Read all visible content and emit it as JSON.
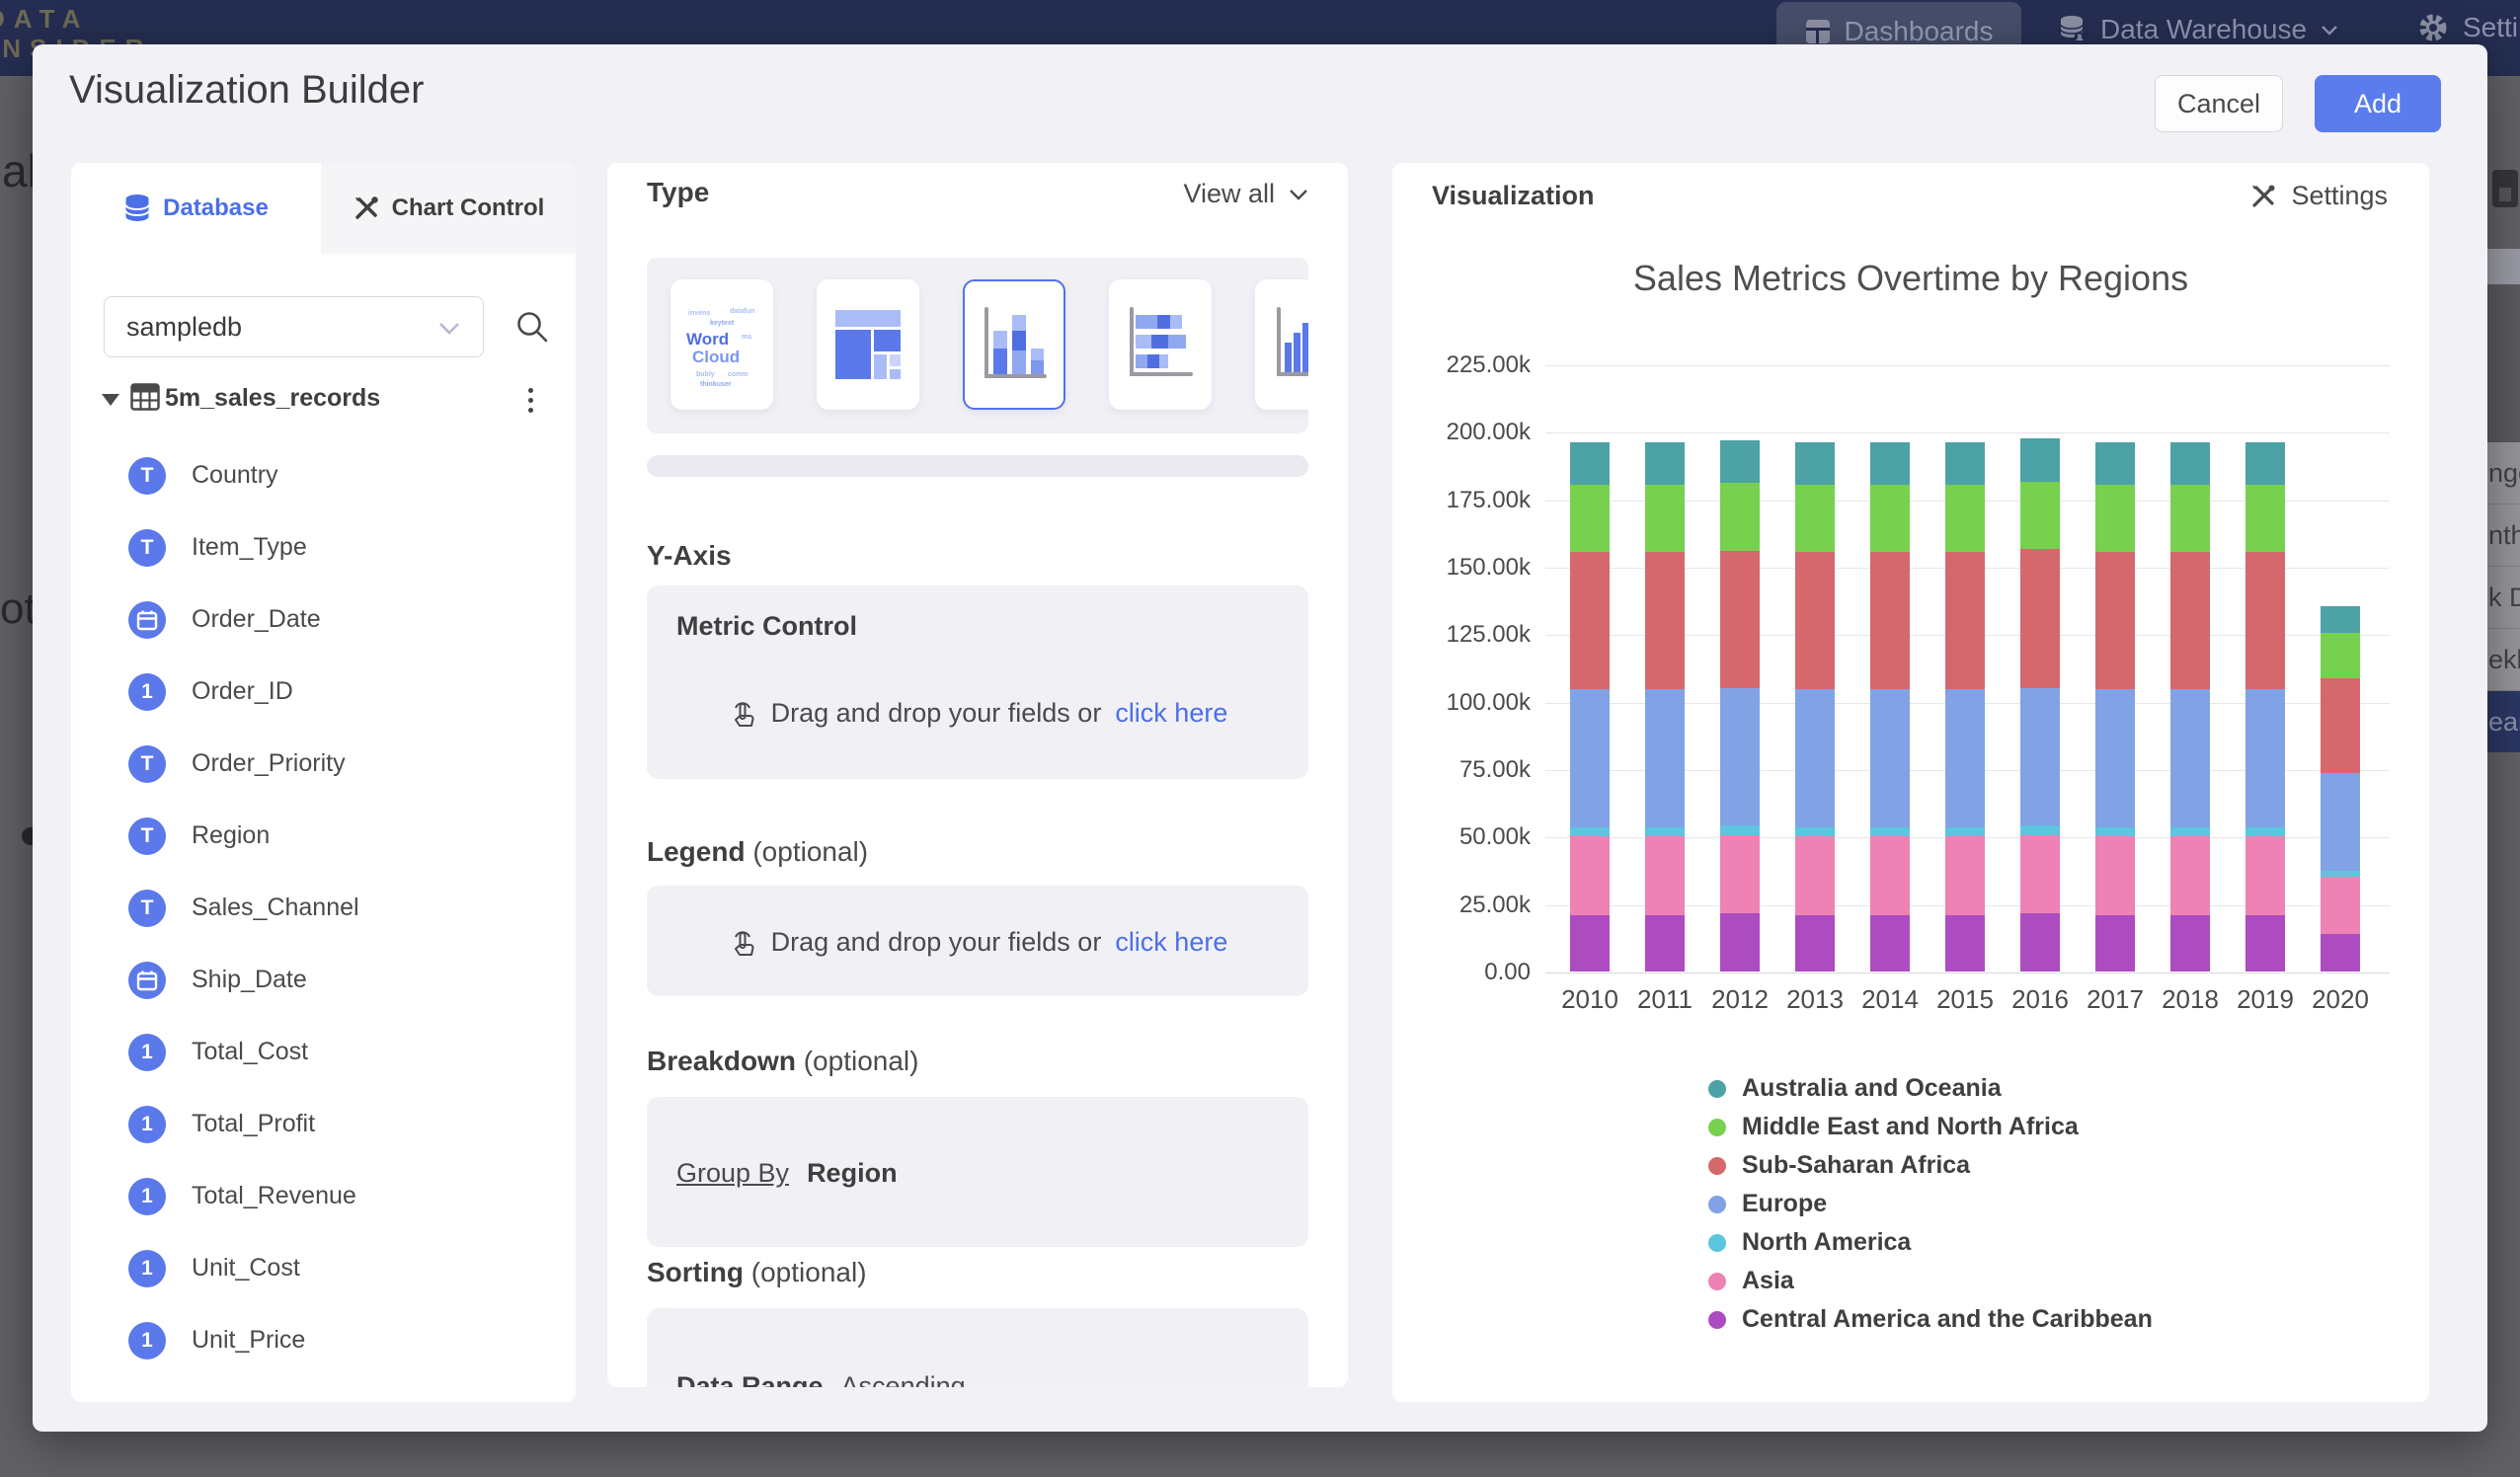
{
  "nav": {
    "logo_top": "DATA",
    "logo_bottom": "INSIDER",
    "dashboards": "Dashboards",
    "data_warehouse": "Data Warehouse",
    "settings": "Settings"
  },
  "background": {
    "fragment_top": "al",
    "fragment_middle": "ota",
    "right_menu": {
      "items": [
        "nge",
        "nthly",
        "k Date",
        "ekly",
        "ear"
      ],
      "active_index": 4
    }
  },
  "modal": {
    "title": "Visualization Builder",
    "cancel_label": "Cancel",
    "add_label": "Add"
  },
  "database_panel": {
    "tabs": [
      {
        "label": "Database"
      },
      {
        "label": "Chart Control"
      }
    ],
    "search_value": "sampledb",
    "table_name": "5m_sales_records",
    "fields": [
      {
        "name": "Country",
        "type": "text"
      },
      {
        "name": "Item_Type",
        "type": "text"
      },
      {
        "name": "Order_Date",
        "type": "date"
      },
      {
        "name": "Order_ID",
        "type": "number"
      },
      {
        "name": "Order_Priority",
        "type": "text"
      },
      {
        "name": "Region",
        "type": "text"
      },
      {
        "name": "Sales_Channel",
        "type": "text"
      },
      {
        "name": "Ship_Date",
        "type": "date"
      },
      {
        "name": "Total_Cost",
        "type": "number"
      },
      {
        "name": "Total_Profit",
        "type": "number"
      },
      {
        "name": "Total_Revenue",
        "type": "number"
      },
      {
        "name": "Unit_Cost",
        "type": "number"
      },
      {
        "name": "Unit_Price",
        "type": "number"
      }
    ]
  },
  "builder_panel": {
    "type_label": "Type",
    "view_all_label": "View all",
    "y_axis_label": "Y-Axis",
    "metric_control_label": "Metric Control",
    "drag_drop_text": "Drag and drop your fields or",
    "click_here_label": "click here",
    "legend_label": "Legend",
    "breakdown_label": "Breakdown",
    "sorting_label": "Sorting",
    "optional_suffix": "(optional)",
    "group_by_label": "Group By",
    "group_by_value": "Region",
    "sorting_field": "Data Range",
    "sorting_value": "Ascending"
  },
  "viz_panel": {
    "header": "Visualization",
    "settings_label": "Settings"
  },
  "chart_data": {
    "type": "bar",
    "stacked": true,
    "title": "Sales Metrics Overtime by Regions",
    "xlabel": "",
    "ylabel": "",
    "unit": "k",
    "ylim": [
      0,
      225
    ],
    "grid": true,
    "legend_position": "bottom",
    "categories": [
      "2010",
      "2011",
      "2012",
      "2013",
      "2014",
      "2015",
      "2016",
      "2017",
      "2018",
      "2019",
      "2020"
    ],
    "y_ticks": [
      "225.00k",
      "200.00k",
      "175.00k",
      "150.00k",
      "125.00k",
      "100.00k",
      "75.00k",
      "50.00k",
      "25.00k",
      "0.00"
    ],
    "series": [
      {
        "name": "Central America and the Caribbean",
        "color": "#ad4bc1",
        "values": [
          21,
          21,
          21.5,
          21,
          21,
          21,
          21.5,
          21,
          21,
          21,
          14
        ]
      },
      {
        "name": "Asia",
        "color": "#ee82b4",
        "values": [
          29,
          29,
          29,
          29,
          29,
          29,
          29,
          29,
          29,
          29,
          21
        ]
      },
      {
        "name": "North America",
        "color": "#5bc6dd",
        "values": [
          3.5,
          3.5,
          3.5,
          3.5,
          3.5,
          3.5,
          3.5,
          3.5,
          3.5,
          3.5,
          2.5
        ]
      },
      {
        "name": "Europe",
        "color": "#81a2e5",
        "values": [
          51,
          51,
          51,
          51,
          51,
          51,
          51,
          51,
          51,
          51,
          36
        ]
      },
      {
        "name": "Sub-Saharan Africa",
        "color": "#d5686c",
        "values": [
          51,
          51,
          51,
          51,
          51,
          51,
          51.5,
          51,
          51,
          51,
          35
        ]
      },
      {
        "name": "Middle East and North Africa",
        "color": "#77d14f",
        "values": [
          25,
          25,
          25,
          25,
          25,
          25,
          25,
          25,
          25,
          25,
          17
        ]
      },
      {
        "name": "Australia and Oceania",
        "color": "#4da2a6",
        "values": [
          15.5,
          15.5,
          16,
          15.5,
          15.5,
          15.5,
          16,
          15.5,
          15.5,
          15.5,
          10
        ]
      }
    ]
  }
}
